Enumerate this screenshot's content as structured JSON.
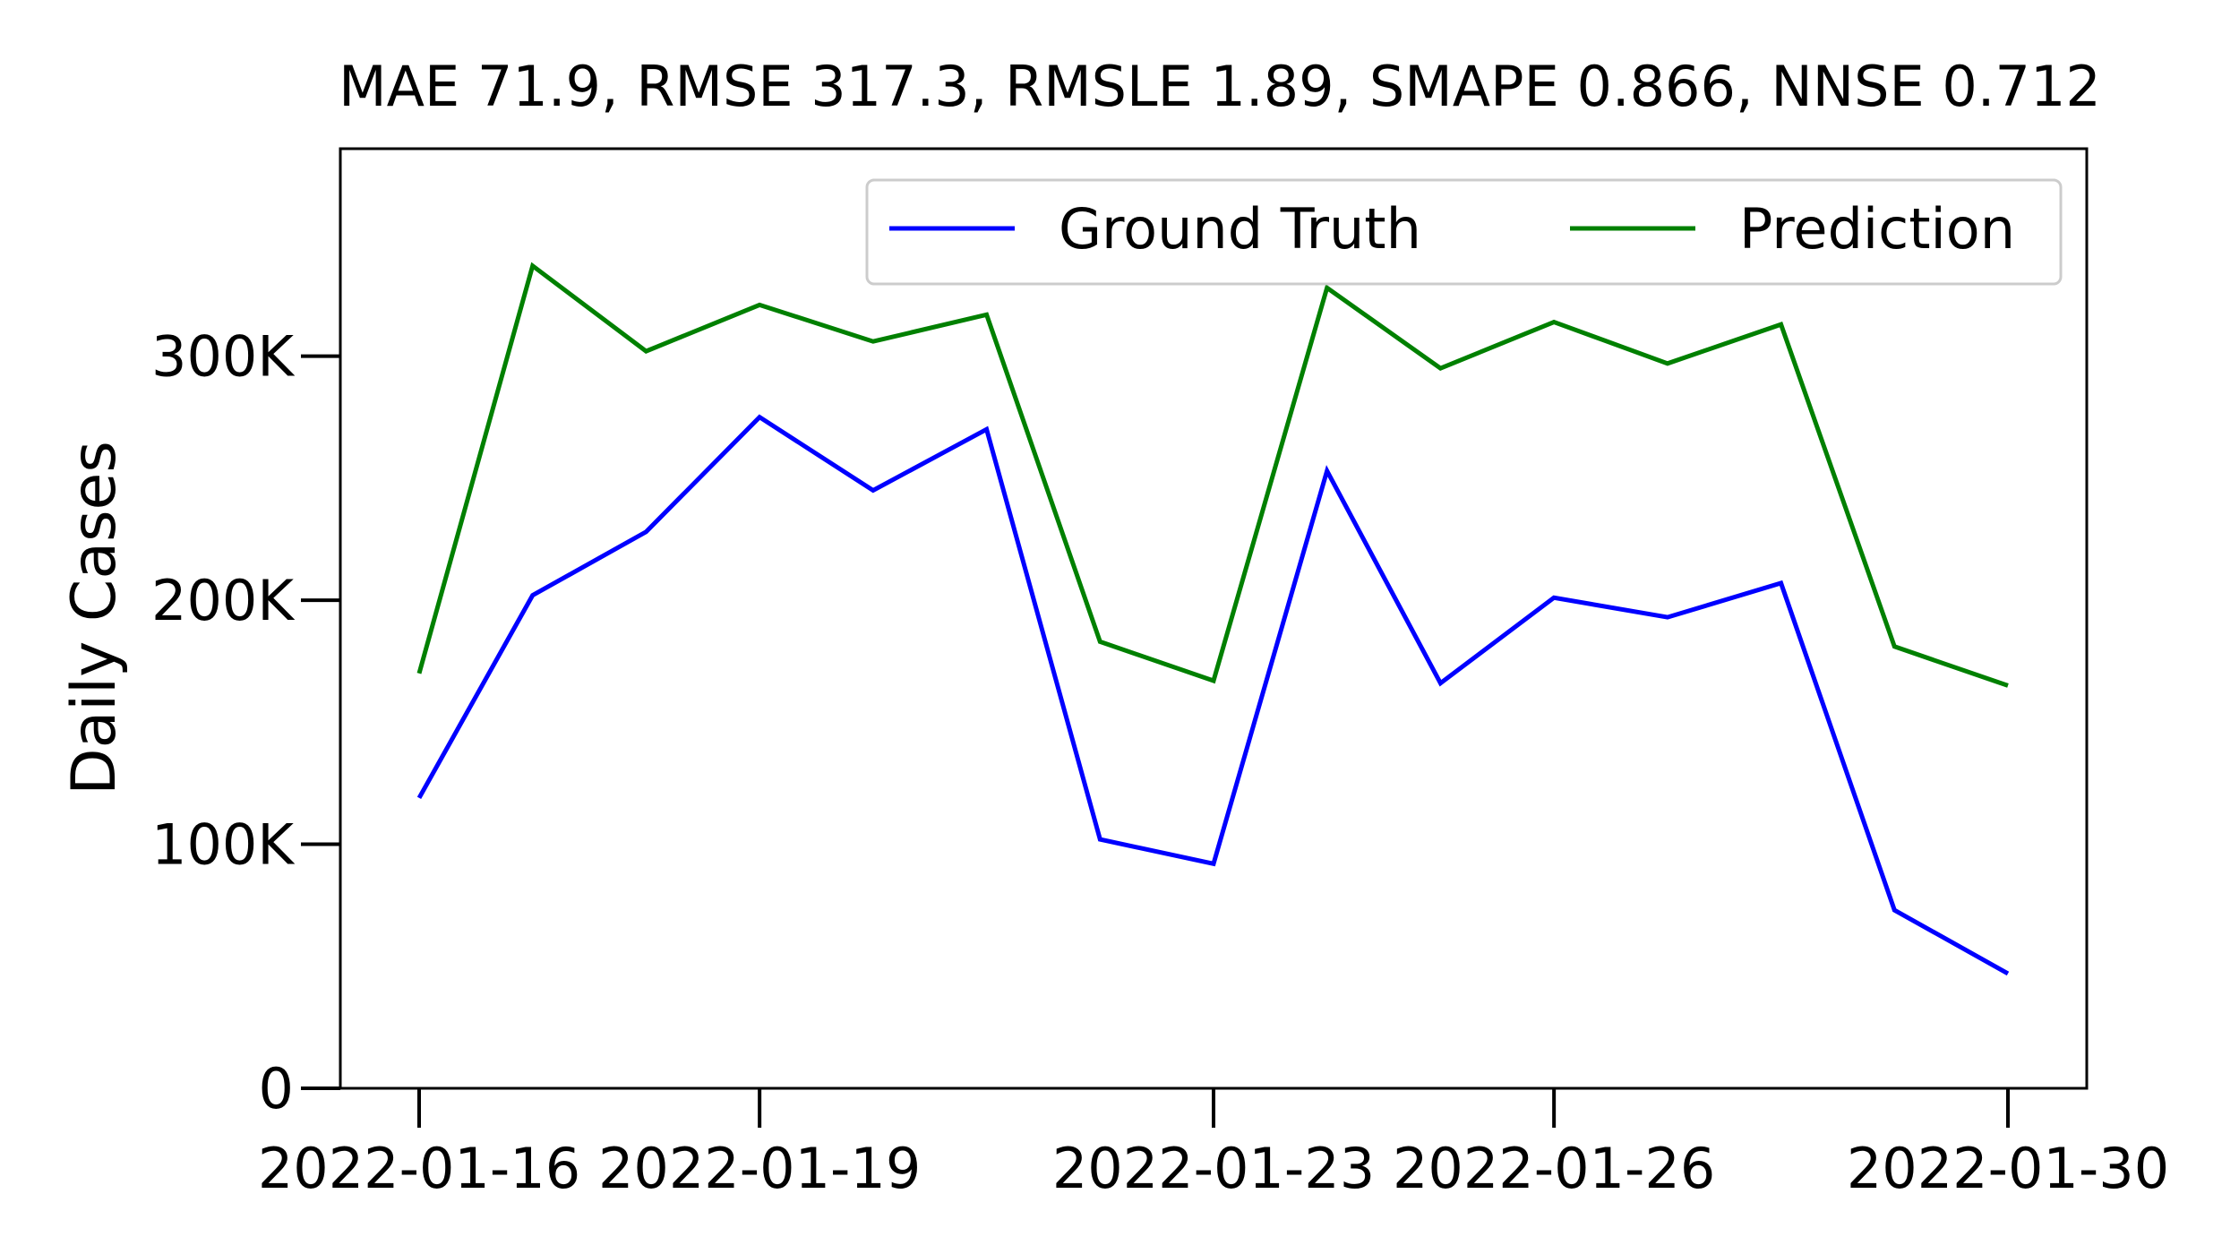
{
  "chart_data": {
    "type": "line",
    "title": "MAE 71.9, RMSE 317.3, RMSLE 1.89, SMAPE 0.866, NNSE 0.712",
    "xlabel": "",
    "ylabel": "Daily Cases",
    "x": [
      "2022-01-16",
      "2022-01-17",
      "2022-01-18",
      "2022-01-19",
      "2022-01-20",
      "2022-01-21",
      "2022-01-22",
      "2022-01-23",
      "2022-01-24",
      "2022-01-25",
      "2022-01-26",
      "2022-01-27",
      "2022-01-28",
      "2022-01-29",
      "2022-01-30"
    ],
    "x_ticks": [
      "2022-01-16",
      "2022-01-19",
      "2022-01-23",
      "2022-01-26",
      "2022-01-30"
    ],
    "y_ticks": [
      0,
      100000,
      200000,
      300000
    ],
    "y_tick_labels": [
      "0",
      "100K",
      "200K",
      "300K"
    ],
    "ylim": [
      0,
      385000
    ],
    "grid": false,
    "legend": {
      "placement": "top-right",
      "ncol": 2
    },
    "series": [
      {
        "name": "Ground Truth",
        "color": "#0000ff",
        "values": [
          119000,
          202000,
          228000,
          275000,
          245000,
          270000,
          102000,
          92000,
          253000,
          166000,
          201000,
          193000,
          207000,
          73000,
          47000
        ]
      },
      {
        "name": "Prediction",
        "color": "#008000",
        "values": [
          170000,
          337000,
          302000,
          321000,
          306000,
          317000,
          183000,
          167000,
          328000,
          295000,
          314000,
          297000,
          313000,
          181000,
          165000
        ]
      }
    ]
  }
}
